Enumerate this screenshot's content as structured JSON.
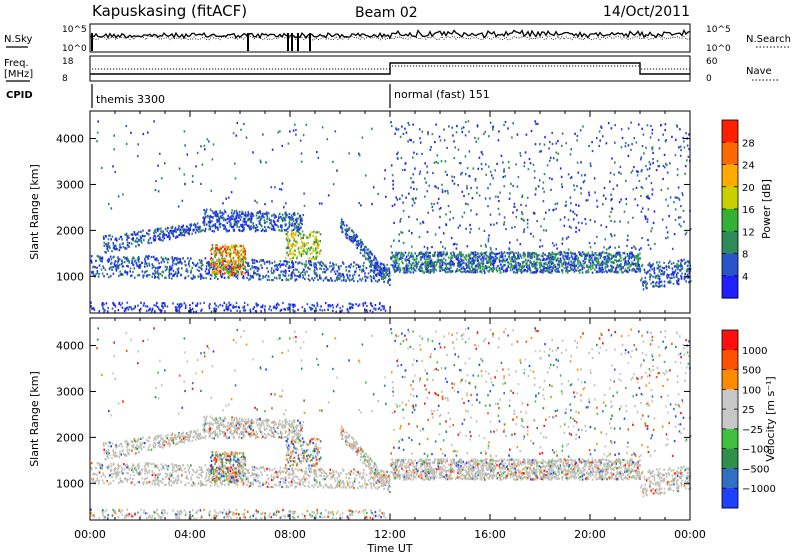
{
  "header": {
    "station": "Kapuskasing (fitACF)",
    "beam": "Beam 02",
    "date": "14/Oct/2011"
  },
  "nsky_panel": {
    "left_label": "N.Sky",
    "right_label": "N.Search",
    "left_ticks": [
      "10^5",
      "10^0"
    ],
    "right_ticks": [
      "10^5",
      "10^0"
    ]
  },
  "freq_panel": {
    "left_label_1": "Freq.",
    "left_label_2": "[MHz]",
    "right_label": "Nave",
    "left_ticks": [
      "18",
      "8"
    ],
    "right_ticks": [
      "60",
      "0"
    ]
  },
  "cpid": {
    "label": "CPID",
    "modes": [
      {
        "name": "themis 3300",
        "start_hour": 0
      },
      {
        "name": "normal (fast) 151",
        "start_hour": 12
      }
    ]
  },
  "colors": {
    "power": [
      "#1f1fff",
      "#2a55c8",
      "#2e8a5a",
      "#34b034",
      "#c8d000",
      "#ffaa00",
      "#ff6a00",
      "#ff2000"
    ],
    "velocity": [
      "#2040ff",
      "#3070c0",
      "#30904a",
      "#40c040",
      "#c8c8c8",
      "#c8c8c8",
      "#ff8c00",
      "#ff5000",
      "#ff1010"
    ],
    "ground_scatter": "#c0c0b8"
  },
  "chart_data": [
    {
      "type": "heatmap",
      "name": "power",
      "ylabel": "Slant Range [km]",
      "ylim": [
        200,
        4600
      ],
      "xlim": [
        0,
        24
      ],
      "yticks": [
        "1000",
        "2000",
        "3000",
        "4000"
      ],
      "colorbar_label": "Power [dB]",
      "colorbar_ticks": [
        "4",
        "8",
        "12",
        "16",
        "20",
        "24",
        "28"
      ]
    },
    {
      "type": "heatmap",
      "name": "velocity",
      "ylabel": "Slant Range [km]",
      "ylim": [
        200,
        4600
      ],
      "xlim": [
        0,
        24
      ],
      "yticks": [
        "1000",
        "2000",
        "3000",
        "4000"
      ],
      "colorbar_label": "Velocity [m s⁻¹]",
      "colorbar_ticks": [
        "1000",
        "500",
        "100",
        "25",
        "−25",
        "−100",
        "−500",
        "−1000"
      ]
    }
  ],
  "xaxis": {
    "label": "Time UT",
    "ticks": [
      "00:00",
      "04:00",
      "08:00",
      "12:00",
      "16:00",
      "20:00",
      "00:00"
    ]
  }
}
